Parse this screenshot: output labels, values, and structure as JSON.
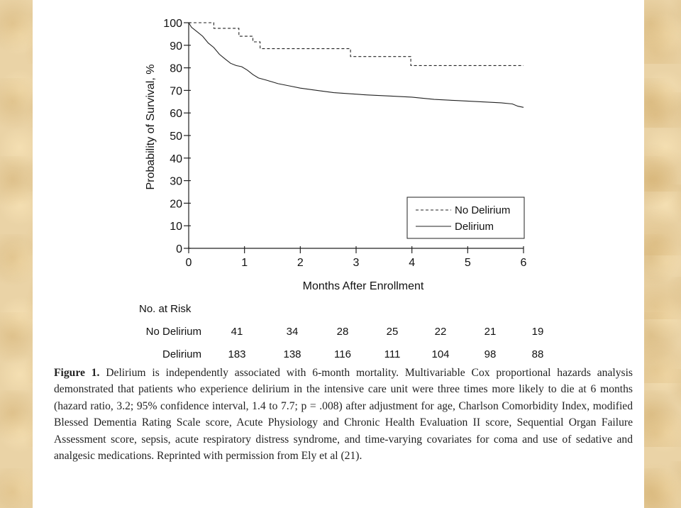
{
  "chart_data": {
    "type": "line",
    "ylabel": "Probability of Survival, %",
    "xlabel": "Months After Enrollment",
    "xlim": [
      0,
      6
    ],
    "ylim": [
      0,
      100
    ],
    "xticks": [
      "0",
      "1",
      "2",
      "3",
      "4",
      "5",
      "6"
    ],
    "yticks": [
      "0",
      "10",
      "20",
      "30",
      "40",
      "50",
      "60",
      "70",
      "80",
      "90",
      "100"
    ],
    "legend_position": "bottom-right",
    "series": [
      {
        "name": "No Delirium",
        "style": "dashed",
        "x": [
          0,
          0.45,
          0.45,
          0.9,
          0.9,
          1.15,
          1.15,
          1.28,
          1.28,
          2.9,
          2.9,
          3.98,
          3.98,
          6.0
        ],
        "y": [
          100,
          100,
          97.5,
          97.5,
          94,
          94,
          91.5,
          91.5,
          88.5,
          88.5,
          85,
          85,
          81,
          81
        ]
      },
      {
        "name": "Delirium",
        "style": "solid",
        "x": [
          0,
          0.05,
          0.15,
          0.25,
          0.35,
          0.45,
          0.55,
          0.65,
          0.75,
          0.85,
          0.95,
          1.05,
          1.15,
          1.25,
          1.4,
          1.6,
          1.8,
          2.0,
          2.3,
          2.6,
          2.9,
          3.2,
          3.6,
          4.0,
          4.4,
          4.8,
          5.2,
          5.6,
          5.8,
          5.9,
          6.0
        ],
        "y": [
          100,
          98,
          96,
          94,
          91,
          89,
          86,
          84,
          82,
          81,
          80.5,
          79,
          77,
          75.5,
          74.5,
          73,
          72,
          71,
          70,
          69,
          68.5,
          68,
          67.5,
          67,
          66,
          65.5,
          65,
          64.5,
          64,
          63,
          62.5
        ]
      }
    ],
    "at_risk": {
      "heading": "No. at Risk",
      "rows": [
        {
          "label": "No Delirium",
          "values": [
            "41",
            "34",
            "28",
            "25",
            "22",
            "21",
            "19"
          ]
        },
        {
          "label": "Delirium",
          "values": [
            "183",
            "138",
            "116",
            "111",
            "104",
            "98",
            "88"
          ]
        }
      ]
    }
  },
  "caption": {
    "label": "Figure 1.",
    "text": " Delirium is independently associated with 6-month mortality. Multivariable Cox proportional hazards analysis demonstrated that patients who experience delirium in the intensive care unit were three times more likely to die at 6 months (hazard ratio, 3.2; 95% confidence interval, 1.4 to 7.7; p = .008) after adjustment for age, Charlson Comorbidity Index, modified Blessed Dementia Rating Scale score, Acute Physiology and Chronic Health Evaluation II score, Sequential Organ Failure Assessment score, sepsis, acute respiratory distress syndrome, and time-varying covariates for coma and use of sedative and analgesic medications. Reprinted with permission from Ely et al (21)."
  }
}
